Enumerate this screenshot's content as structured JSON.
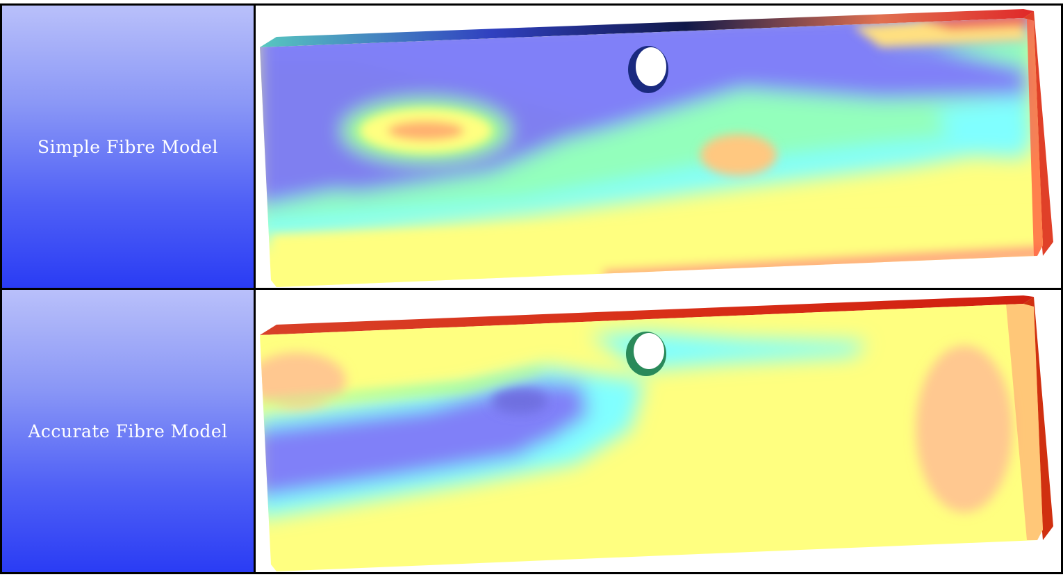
{
  "rows": [
    {
      "label": "Simple Fibre Model"
    },
    {
      "label": "Accurate Fibre Model"
    }
  ],
  "colors": {
    "label_gradient_top": "#b9c0fa",
    "label_gradient_bottom": "#2a3cf4",
    "field_yellow": "#ffff80",
    "field_blue": "#8080f8",
    "field_cyan": "#80ffff",
    "field_red": "#e83020"
  }
}
